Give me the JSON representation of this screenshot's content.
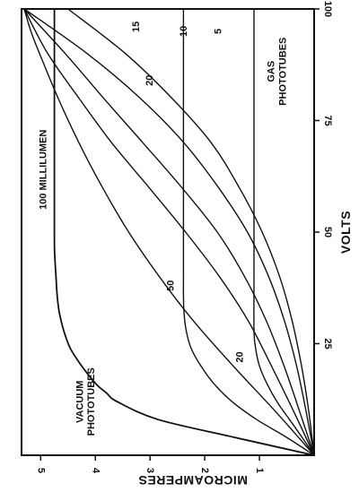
{
  "chart_data": {
    "type": "line",
    "xlabel": "VOLTS",
    "ylabel": "MICROAMPERES",
    "xlim": [
      0,
      100
    ],
    "ylim": [
      0,
      5.35
    ],
    "x_ticks": [
      "25",
      "50",
      "75",
      "100"
    ],
    "y_ticks": [
      "1",
      "2",
      "3",
      "4",
      "5"
    ],
    "series": [
      {
        "name": "100 MILLILUMEN",
        "group": "vacuum",
        "x": [
          0,
          4,
          8,
          12,
          14,
          16,
          20,
          24,
          28,
          32,
          36,
          40,
          44,
          48,
          60,
          80,
          100
        ],
        "y": [
          0,
          1.45,
          2.85,
          3.6,
          3.8,
          3.99,
          4.25,
          4.46,
          4.58,
          4.66,
          4.7,
          4.72,
          4.74,
          4.75,
          4.75,
          4.75,
          4.75
        ]
      },
      {
        "name": "50",
        "group": "vacuum",
        "x": [
          0,
          4,
          8,
          12,
          16,
          20,
          24,
          28,
          32,
          36,
          40,
          60,
          80,
          100
        ],
        "y": [
          0,
          0.5,
          1.05,
          1.5,
          1.83,
          2.07,
          2.25,
          2.34,
          2.38,
          2.39,
          2.39,
          2.39,
          2.39,
          2.39
        ]
      },
      {
        "name": "20",
        "group": "vacuum",
        "x": [
          0,
          4,
          8,
          12,
          16,
          20,
          24,
          28,
          40,
          60,
          80,
          100
        ],
        "y": [
          0,
          0.22,
          0.45,
          0.68,
          0.86,
          1.0,
          1.07,
          1.1,
          1.1,
          1.1,
          1.1,
          1.1
        ]
      },
      {
        "name": "20",
        "group": "gas",
        "x": [
          0,
          10,
          20,
          30,
          40,
          50,
          60,
          70,
          80,
          90,
          95,
          100
        ],
        "y": [
          0,
          0.72,
          1.48,
          2.2,
          2.83,
          3.39,
          3.87,
          4.3,
          4.68,
          5.02,
          5.18,
          5.3
        ]
      },
      {
        "name": "15",
        "group": "gas",
        "x": [
          0,
          10,
          20,
          30,
          40,
          50,
          60,
          70,
          80,
          90,
          100
        ],
        "y": [
          0,
          0.38,
          0.78,
          1.2,
          1.73,
          2.35,
          3.02,
          3.7,
          4.3,
          4.87,
          5.3
        ]
      },
      {
        "name": "10",
        "group": "gas",
        "x": [
          0,
          10,
          20,
          30,
          40,
          50,
          60,
          70,
          80,
          90,
          100
        ],
        "y": [
          0,
          0.27,
          0.55,
          0.87,
          1.27,
          1.77,
          2.42,
          3.13,
          3.85,
          4.55,
          5.3
        ]
      },
      {
        "name": "5",
        "group": "gas",
        "x": [
          0,
          10,
          20,
          30,
          40,
          50,
          60,
          70,
          80,
          90,
          100
        ],
        "y": [
          0,
          0.15,
          0.32,
          0.54,
          0.83,
          1.22,
          1.75,
          2.38,
          3.18,
          4.15,
          5.3
        ]
      },
      {
        "name": "",
        "group": "gas",
        "x": [
          0,
          10,
          20,
          30,
          40,
          50,
          60,
          70,
          80,
          90,
          100
        ],
        "y": [
          0,
          0.1,
          0.23,
          0.4,
          0.63,
          0.95,
          1.37,
          1.88,
          2.6,
          3.45,
          4.5
        ]
      }
    ],
    "annotations": {
      "vacuum": "VACUUM PHOTOTUBES",
      "gas": "GAS PHOTOTUBES"
    },
    "grid": false,
    "legend": "none"
  }
}
